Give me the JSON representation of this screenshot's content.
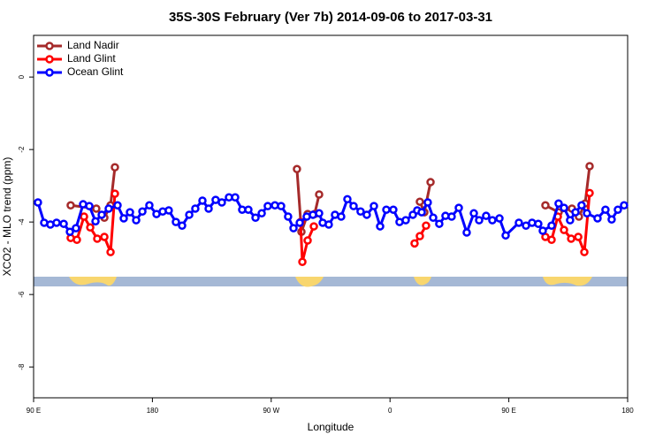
{
  "chart_data": {
    "type": "line",
    "title": "35S-30S February (Ver 7b)   2014-09-06 to 2017-03-31",
    "x_label": "Longitude",
    "y_label": "XCO2 - MLO trend (ppm)",
    "xlim": [
      90,
      540
    ],
    "xticks": [
      {
        "value": 90,
        "label": "90 E"
      },
      180,
      {
        "value": 270,
        "label": "90 W"
      },
      {
        "value": 360,
        "label": "0"
      },
      {
        "value": 450,
        "label": "90 E"
      },
      {
        "value": 540,
        "label": "180"
      }
    ],
    "ylim": [
      -8.85,
      1.15
    ],
    "yticks": [
      0,
      -2,
      -4,
      -6,
      -8
    ],
    "legend": "top-left",
    "series": [
      {
        "name": "Land Nadir",
        "color": "#a52a2a",
        "x": [
          118.1,
          137.5,
          143.6,
          148.3,
          151.6,
          null,
          289.5,
          292.9,
          297.6,
          302.9,
          306.3,
          null,
          382.6,
          386.0,
          390.7,
          null,
          477.7,
          487.7,
          497.8,
          503.1,
          507.8,
          511.2
        ],
        "values": [
          -3.54,
          -3.63,
          -3.88,
          -3.54,
          -2.49,
          null,
          -2.54,
          -4.27,
          -3.78,
          -3.78,
          -3.24,
          null,
          -3.44,
          -3.73,
          -2.9,
          null,
          -3.54,
          -3.73,
          -3.63,
          -3.85,
          -3.49,
          -2.46
        ]
      },
      {
        "name": "Land Glint",
        "color": "#ff0000",
        "x": [
          118.1,
          122.8,
          128.2,
          132.9,
          138.2,
          143.6,
          148.3,
          151.6,
          null,
          292.2,
          293.6,
          297.6,
          302.3,
          null,
          378.6,
          382.6,
          387.3,
          null,
          477.7,
          482.4,
          487.1,
          491.8,
          497.2,
          502.6,
          507.2,
          511.2
        ],
        "values": [
          -4.44,
          -4.49,
          -3.85,
          -4.15,
          -4.46,
          -4.41,
          -4.83,
          -3.22,
          null,
          -4.0,
          -5.1,
          -4.51,
          -4.12,
          null,
          -4.59,
          -4.39,
          -4.1,
          null,
          -4.41,
          -4.49,
          -3.85,
          -4.22,
          -4.46,
          -4.41,
          -4.83,
          -3.2
        ]
      },
      {
        "name": "Ocean Glint",
        "color": "#0000ff",
        "x": [
          93.3,
          98.0,
          102.7,
          107.4,
          112.8,
          117.5,
          122.1,
          127.5,
          132.2,
          136.9,
          141.6,
          146.9,
          153.6,
          158.3,
          163.0,
          167.7,
          172.4,
          177.7,
          183.1,
          187.8,
          192.4,
          197.8,
          202.5,
          207.9,
          212.5,
          217.9,
          222.6,
          227.9,
          232.6,
          238.0,
          242.7,
          248.0,
          252.7,
          258.1,
          262.8,
          267.4,
          272.8,
          277.5,
          282.8,
          286.9,
          291.6,
          296.9,
          301.6,
          306.3,
          309.0,
          313.6,
          318.3,
          323.0,
          327.7,
          332.4,
          337.7,
          342.4,
          347.8,
          352.5,
          357.2,
          362.5,
          367.2,
          371.9,
          377.3,
          380.6,
          384.0,
          388.6,
          392.7,
          397.3,
          402.0,
          406.7,
          412.1,
          418.1,
          423.5,
          427.5,
          432.8,
          437.5,
          442.9,
          447.6,
          457.6,
          463.0,
          467.6,
          472.3,
          475.7,
          482.4,
          487.7,
          491.8,
          496.4,
          500.5,
          505.1,
          509.2,
          517.2,
          523.2,
          527.9,
          532.6,
          537.3
        ],
        "values": [
          -3.46,
          -4.02,
          -4.07,
          -4.02,
          -4.05,
          -4.27,
          -4.17,
          -3.51,
          -3.56,
          -3.98,
          -3.8,
          -3.63,
          -3.54,
          -3.9,
          -3.73,
          -3.95,
          -3.71,
          -3.54,
          -3.78,
          -3.71,
          -3.68,
          -4.0,
          -4.1,
          -3.8,
          -3.63,
          -3.41,
          -3.63,
          -3.39,
          -3.46,
          -3.32,
          -3.32,
          -3.66,
          -3.66,
          -3.88,
          -3.76,
          -3.56,
          -3.54,
          -3.56,
          -3.85,
          -4.17,
          -4.02,
          -3.85,
          -3.8,
          -3.76,
          -4.02,
          -4.07,
          -3.8,
          -3.85,
          -3.37,
          -3.56,
          -3.71,
          -3.8,
          -3.56,
          -4.12,
          -3.66,
          -3.66,
          -4.0,
          -3.95,
          -3.8,
          -3.68,
          -3.73,
          -3.46,
          -3.88,
          -4.05,
          -3.83,
          -3.85,
          -3.61,
          -4.29,
          -3.76,
          -3.95,
          -3.83,
          -3.95,
          -3.9,
          -4.37,
          -4.02,
          -4.1,
          -4.02,
          -4.05,
          -4.24,
          -4.1,
          -3.49,
          -3.61,
          -3.95,
          -3.73,
          -3.54,
          -3.76,
          -3.9,
          -3.66,
          -3.93,
          -3.66,
          -3.54
        ]
      }
    ]
  }
}
